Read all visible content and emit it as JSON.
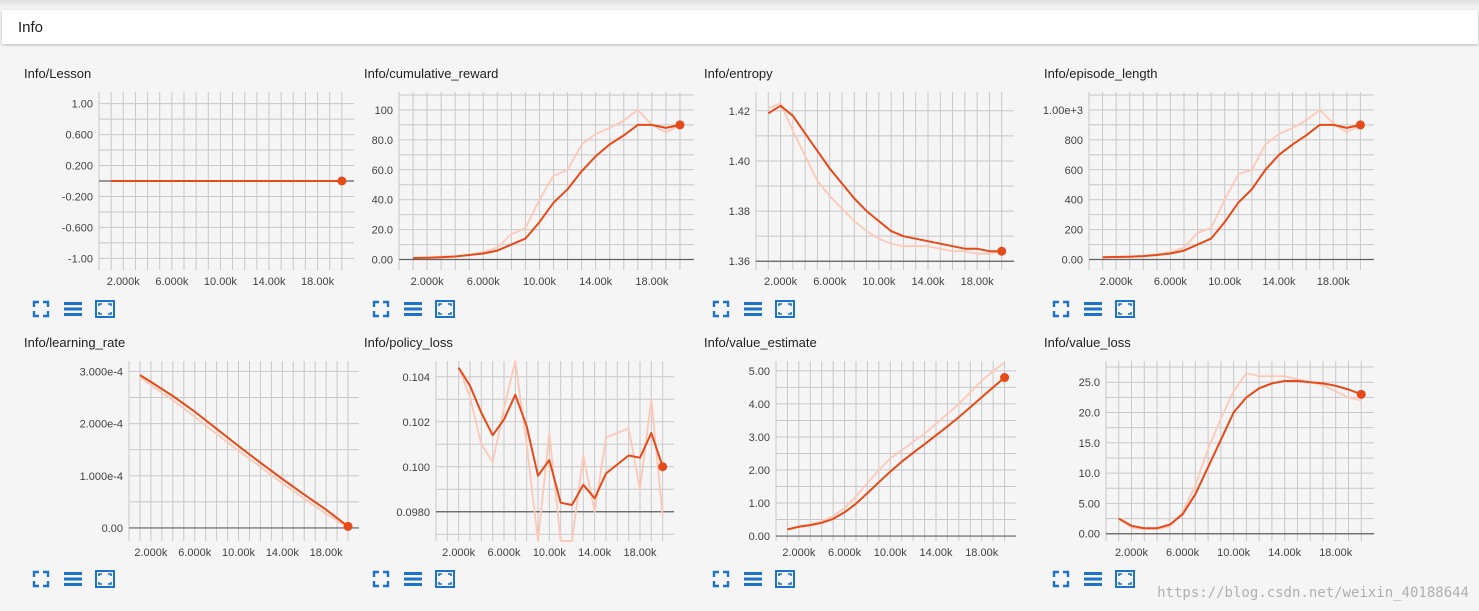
{
  "section": {
    "title": "Info"
  },
  "palette": {
    "line": "#e64a19",
    "raw": "#fcc9b8",
    "grid": "#c8c8c8",
    "axis": "#616161"
  },
  "watermark": "https://blog.csdn.net/weixin_40188644",
  "card_icons": [
    "expand-icon",
    "toggle-log-scale-icon",
    "fit-domain-icon"
  ],
  "chart_data": [
    {
      "type": "line",
      "title": "Info/Lesson",
      "xlim": [
        0,
        21000
      ],
      "ylim": [
        -1.15,
        1.15
      ],
      "xticks": [
        2000,
        6000,
        10000,
        14000,
        18000
      ],
      "xtick_labels": [
        "2.000k",
        "6.000k",
        "10.00k",
        "14.00k",
        "18.00k"
      ],
      "yticks": [
        1.0,
        0.6,
        0.2,
        -0.2,
        -0.6,
        -1.0
      ],
      "ytick_labels": [
        "1.00",
        "0.600",
        "0.200",
        "-0.200",
        "-0.600",
        "-1.00"
      ],
      "series": [
        {
          "kind": "raw",
          "x": [
            1000,
            20000
          ],
          "y": [
            0,
            0
          ]
        },
        {
          "kind": "smoothed",
          "x": [
            1000,
            20000
          ],
          "y": [
            0,
            0
          ]
        }
      ]
    },
    {
      "type": "line",
      "title": "Info/cumulative_reward",
      "xlim": [
        0,
        21000
      ],
      "ylim": [
        -7,
        112
      ],
      "xticks": [
        2000,
        6000,
        10000,
        14000,
        18000
      ],
      "xtick_labels": [
        "2.000k",
        "6.000k",
        "10.00k",
        "14.00k",
        "18.00k"
      ],
      "yticks": [
        0,
        20,
        40,
        60,
        80,
        100
      ],
      "ytick_labels": [
        "0.00",
        "20.0",
        "40.0",
        "60.0",
        "80.0",
        "100"
      ],
      "series": [
        {
          "kind": "raw",
          "x": [
            1000,
            2000,
            3000,
            4000,
            5000,
            6000,
            7000,
            8000,
            9000,
            10000,
            11000,
            12000,
            13000,
            14000,
            15000,
            16000,
            17000,
            18000,
            19000,
            20000
          ],
          "y": [
            1,
            1,
            2,
            2,
            3,
            5,
            8,
            17,
            21,
            40,
            56,
            60,
            77,
            84,
            88,
            93,
            100,
            90,
            85,
            90
          ]
        },
        {
          "kind": "smoothed",
          "x": [
            1000,
            2000,
            3000,
            4000,
            5000,
            6000,
            7000,
            8000,
            9000,
            10000,
            11000,
            12000,
            13000,
            14000,
            15000,
            16000,
            17000,
            18000,
            19000,
            20000
          ],
          "y": [
            1,
            1.2,
            1.5,
            2,
            3,
            4,
            6,
            10,
            14,
            25,
            38,
            47,
            59,
            69,
            77,
            83,
            90,
            90,
            88,
            90
          ]
        }
      ]
    },
    {
      "type": "line",
      "title": "Info/entropy",
      "xlim": [
        0,
        21000
      ],
      "ylim": [
        1.3565,
        1.4275
      ],
      "xticks": [
        2000,
        6000,
        10000,
        14000,
        18000
      ],
      "xtick_labels": [
        "2.000k",
        "6.000k",
        "10.00k",
        "14.00k",
        "18.00k"
      ],
      "yticks": [
        1.36,
        1.38,
        1.4,
        1.42
      ],
      "ytick_labels": [
        "1.36",
        "1.38",
        "1.40",
        "1.42"
      ],
      "series": [
        {
          "kind": "raw",
          "x": [
            1000,
            2000,
            3000,
            4000,
            5000,
            6000,
            7000,
            8000,
            9000,
            10000,
            11000,
            12000,
            13000,
            14000,
            15000,
            16000,
            17000,
            18000,
            19000,
            20000
          ],
          "y": [
            1.421,
            1.423,
            1.412,
            1.402,
            1.392,
            1.386,
            1.381,
            1.376,
            1.372,
            1.369,
            1.367,
            1.366,
            1.366,
            1.366,
            1.365,
            1.364,
            1.364,
            1.363,
            1.363,
            1.364
          ]
        },
        {
          "kind": "smoothed",
          "x": [
            1000,
            2000,
            3000,
            4000,
            5000,
            6000,
            7000,
            8000,
            9000,
            10000,
            11000,
            12000,
            13000,
            14000,
            15000,
            16000,
            17000,
            18000,
            19000,
            20000
          ],
          "y": [
            1.419,
            1.422,
            1.418,
            1.411,
            1.404,
            1.397,
            1.391,
            1.385,
            1.38,
            1.376,
            1.372,
            1.37,
            1.369,
            1.368,
            1.367,
            1.366,
            1.365,
            1.365,
            1.364,
            1.364
          ]
        }
      ]
    },
    {
      "type": "line",
      "title": "Info/episode_length",
      "xlim": [
        0,
        21000
      ],
      "ylim": [
        -70,
        1120
      ],
      "xticks": [
        2000,
        6000,
        10000,
        14000,
        18000
      ],
      "xtick_labels": [
        "2.000k",
        "6.000k",
        "10.00k",
        "14.00k",
        "18.00k"
      ],
      "yticks": [
        0,
        200,
        400,
        600,
        800,
        1000
      ],
      "ytick_labels": [
        "0.00",
        "200",
        "400",
        "600",
        "800",
        "1.00e+3"
      ],
      "series": [
        {
          "kind": "raw",
          "x": [
            1000,
            2000,
            3000,
            4000,
            5000,
            6000,
            7000,
            8000,
            9000,
            10000,
            11000,
            12000,
            13000,
            14000,
            15000,
            16000,
            17000,
            18000,
            19000,
            20000
          ],
          "y": [
            15,
            18,
            20,
            25,
            35,
            50,
            80,
            180,
            210,
            400,
            570,
            600,
            770,
            840,
            880,
            930,
            1000,
            910,
            850,
            900
          ]
        },
        {
          "kind": "smoothed",
          "x": [
            1000,
            2000,
            3000,
            4000,
            5000,
            6000,
            7000,
            8000,
            9000,
            10000,
            11000,
            12000,
            13000,
            14000,
            15000,
            16000,
            17000,
            18000,
            19000,
            20000
          ],
          "y": [
            15,
            17,
            19,
            23,
            30,
            40,
            60,
            100,
            140,
            250,
            380,
            470,
            600,
            700,
            770,
            830,
            900,
            900,
            880,
            900
          ]
        }
      ]
    },
    {
      "type": "line",
      "title": "Info/learning_rate",
      "xlim": [
        0,
        21000
      ],
      "ylim": [
        -2.5e-05,
        0.00032
      ],
      "xticks": [
        2000,
        6000,
        10000,
        14000,
        18000
      ],
      "xtick_labels": [
        "2.000k",
        "6.000k",
        "10.00k",
        "14.00k",
        "18.00k"
      ],
      "yticks": [
        0,
        0.0001,
        0.0002,
        0.0003
      ],
      "ytick_labels": [
        "0.00",
        "1.000e-4",
        "2.000e-4",
        "3.000e-4"
      ],
      "series": [
        {
          "kind": "raw",
          "x": [
            1000,
            2000,
            4000,
            6000,
            8000,
            10000,
            12000,
            14000,
            16000,
            18000,
            20000
          ],
          "y": [
            0.000289,
            0.000274,
            0.000245,
            0.000213,
            0.00018,
            0.000148,
            0.000117,
            8.6e-05,
            5.6e-05,
            2.7e-05,
            1e-06
          ]
        },
        {
          "kind": "smoothed",
          "x": [
            1000,
            2000,
            4000,
            6000,
            8000,
            10000,
            12000,
            14000,
            16000,
            18000,
            20000
          ],
          "y": [
            0.000293,
            0.00028,
            0.000253,
            0.000223,
            0.00019,
            0.000157,
            0.000125,
            9.4e-05,
            6.4e-05,
            3.5e-05,
            3e-06
          ]
        }
      ]
    },
    {
      "type": "line",
      "title": "Info/policy_loss",
      "xlim": [
        0,
        21000
      ],
      "ylim": [
        0.0967,
        0.1047
      ],
      "xticks": [
        2000,
        6000,
        10000,
        14000,
        18000
      ],
      "xtick_labels": [
        "2.000k",
        "6.000k",
        "10.00k",
        "14.00k",
        "18.00k"
      ],
      "yticks": [
        0.098,
        0.1,
        0.102,
        0.104
      ],
      "ytick_labels": [
        "0.0980",
        "0.100",
        "0.102",
        "0.104"
      ],
      "series": [
        {
          "kind": "raw",
          "x": [
            2000,
            3000,
            4000,
            5000,
            6000,
            7000,
            8000,
            9000,
            10000,
            11000,
            12000,
            13000,
            14000,
            15000,
            16000,
            17000,
            18000,
            19000,
            20000
          ],
          "y": [
            0.1044,
            0.1031,
            0.101,
            0.1002,
            0.1026,
            0.1047,
            0.101,
            0.0967,
            0.1015,
            0.0967,
            0.0967,
            0.1005,
            0.098,
            0.1013,
            0.1015,
            0.1017,
            0.099,
            0.103,
            0.0978
          ]
        },
        {
          "kind": "smoothed",
          "x": [
            2000,
            3000,
            4000,
            5000,
            6000,
            7000,
            8000,
            9000,
            10000,
            11000,
            12000,
            13000,
            14000,
            15000,
            16000,
            17000,
            18000,
            19000,
            20000
          ],
          "y": [
            0.1044,
            0.1036,
            0.1024,
            0.1014,
            0.1021,
            0.1032,
            0.1018,
            0.0996,
            0.1003,
            0.0984,
            0.0983,
            0.0992,
            0.0986,
            0.0997,
            0.1001,
            0.1005,
            0.1004,
            0.1015,
            0.1
          ]
        }
      ]
    },
    {
      "type": "line",
      "title": "Info/value_estimate",
      "xlim": [
        0,
        21000
      ],
      "ylim": [
        -0.15,
        5.3
      ],
      "xticks": [
        2000,
        6000,
        10000,
        14000,
        18000
      ],
      "xtick_labels": [
        "2.000k",
        "6.000k",
        "10.00k",
        "14.00k",
        "18.00k"
      ],
      "yticks": [
        0,
        1,
        2,
        3,
        4,
        5
      ],
      "ytick_labels": [
        "0.00",
        "1.00",
        "2.00",
        "3.00",
        "4.00",
        "5.00"
      ],
      "series": [
        {
          "kind": "raw",
          "x": [
            1000,
            2000,
            3000,
            4000,
            5000,
            6000,
            7000,
            8000,
            9000,
            10000,
            11000,
            12000,
            13000,
            14000,
            15000,
            16000,
            17000,
            18000,
            19000,
            20000
          ],
          "y": [
            0.2,
            0.3,
            0.35,
            0.45,
            0.6,
            0.85,
            1.2,
            1.6,
            2.0,
            2.35,
            2.6,
            2.85,
            3.1,
            3.4,
            3.7,
            4.0,
            4.35,
            4.7,
            5.0,
            5.25
          ]
        },
        {
          "kind": "smoothed",
          "x": [
            1000,
            2000,
            3000,
            4000,
            5000,
            6000,
            7000,
            8000,
            9000,
            10000,
            11000,
            12000,
            13000,
            14000,
            15000,
            16000,
            17000,
            18000,
            19000,
            20000
          ],
          "y": [
            0.2,
            0.28,
            0.33,
            0.4,
            0.52,
            0.72,
            0.98,
            1.3,
            1.63,
            1.95,
            2.25,
            2.52,
            2.78,
            3.05,
            3.32,
            3.6,
            3.9,
            4.2,
            4.5,
            4.8
          ]
        }
      ]
    },
    {
      "type": "line",
      "title": "Info/value_loss",
      "xlim": [
        0,
        21000
      ],
      "ylim": [
        -1.2,
        28.5
      ],
      "xticks": [
        2000,
        6000,
        10000,
        14000,
        18000
      ],
      "xtick_labels": [
        "2.000k",
        "6.000k",
        "10.00k",
        "14.00k",
        "18.00k"
      ],
      "yticks": [
        0,
        5,
        10,
        15,
        20,
        25
      ],
      "ytick_labels": [
        "0.00",
        "5.00",
        "10.0",
        "15.0",
        "20.0",
        "25.0"
      ],
      "series": [
        {
          "kind": "raw",
          "x": [
            1000,
            2000,
            3000,
            4000,
            5000,
            6000,
            7000,
            8000,
            9000,
            10000,
            11000,
            12000,
            13000,
            14000,
            15000,
            16000,
            17000,
            18000,
            19000,
            20000
          ],
          "y": [
            2.5,
            1.0,
            0.8,
            0.8,
            1.2,
            3.5,
            8.0,
            14.0,
            19.0,
            23.5,
            26.5,
            26.0,
            26.0,
            26.0,
            25.5,
            25.0,
            24.5,
            23.5,
            22.5,
            22.0
          ]
        },
        {
          "kind": "smoothed",
          "x": [
            1000,
            2000,
            3000,
            4000,
            5000,
            6000,
            7000,
            8000,
            9000,
            10000,
            11000,
            12000,
            13000,
            14000,
            15000,
            16000,
            17000,
            18000,
            19000,
            20000
          ],
          "y": [
            2.5,
            1.3,
            0.9,
            0.9,
            1.5,
            3.2,
            6.5,
            11.0,
            15.5,
            20.0,
            22.5,
            24.0,
            24.8,
            25.2,
            25.2,
            25.0,
            24.8,
            24.4,
            23.8,
            23.0
          ]
        }
      ]
    }
  ]
}
